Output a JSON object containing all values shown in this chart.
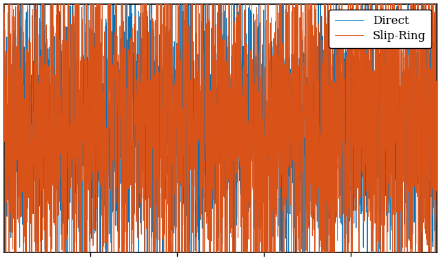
{
  "title": "",
  "xlabel": "",
  "ylabel": "",
  "direct_color": "#0072BD",
  "slipring_color": "#D95319",
  "legend_direct": "Direct",
  "legend_slipring": "Slip-Ring",
  "n_points": 3000,
  "seed_direct": 42,
  "seed_slipring": 99,
  "sigma_direct": 2.5,
  "sigma_slipring": 3.5,
  "xlim": [
    0,
    3000
  ],
  "ylim": [
    -5.0,
    5.0
  ],
  "grid_color": "#aaaaaa",
  "grid_alpha": 0.7,
  "line_width": 0.7,
  "legend_fontsize": 12,
  "legend_loc": "upper right",
  "fig_width": 6.4,
  "fig_height": 3.78,
  "dpi": 100,
  "xtick_positions": [
    600,
    1200,
    1800,
    2400
  ]
}
